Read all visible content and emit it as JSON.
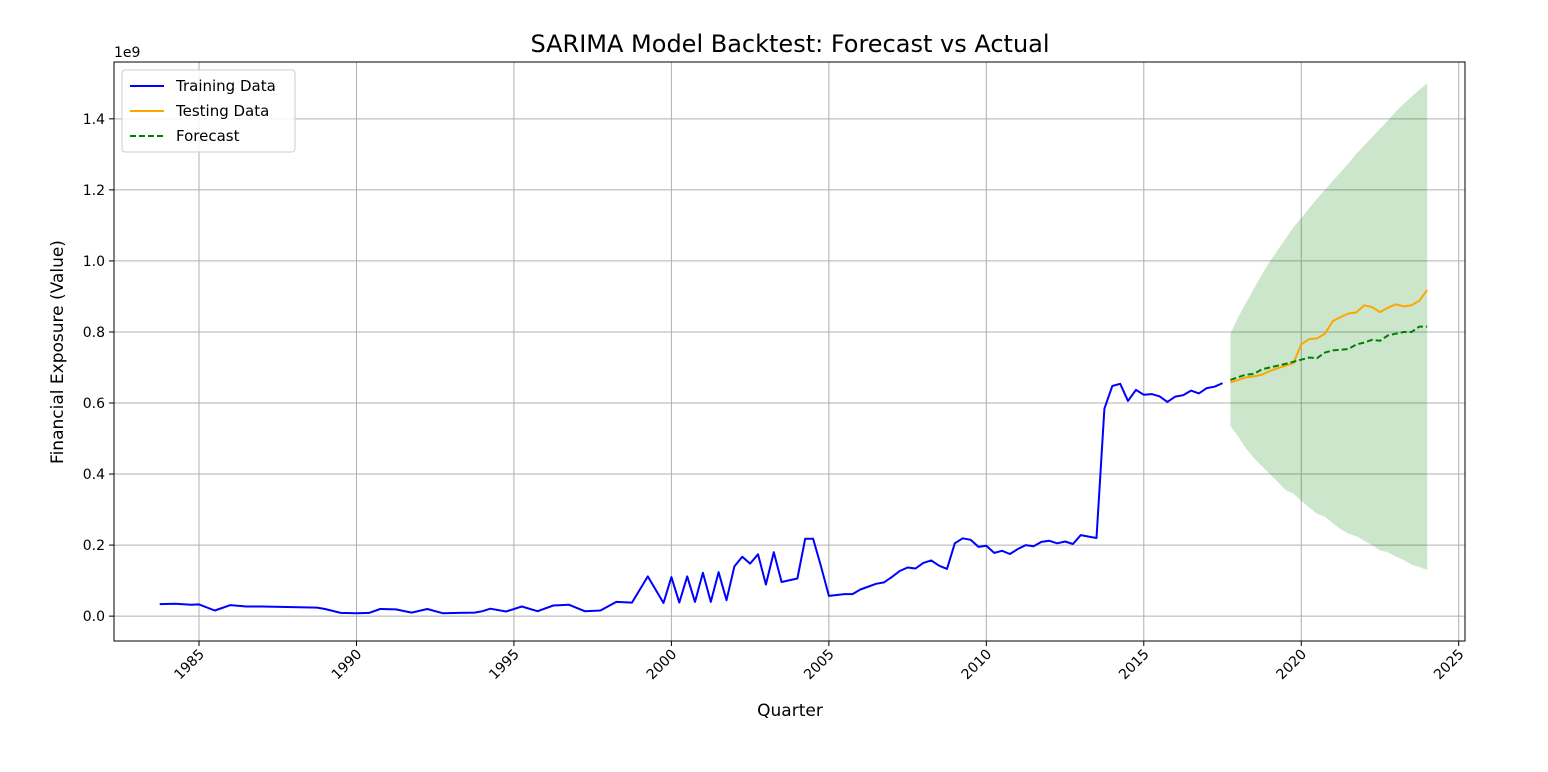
{
  "chart_data": {
    "type": "line",
    "title": "SARIMA Model Backtest: Forecast vs Actual",
    "xlabel": "Quarter",
    "ylabel": "Financial Exposure (Value)",
    "y_offset_label": "1e9",
    "xlim": [
      1982.3,
      2025.2
    ],
    "ylim": [
      -0.07,
      1.56
    ],
    "x_ticks": [
      1985,
      1990,
      1995,
      2000,
      2005,
      2010,
      2015,
      2020,
      2025
    ],
    "x_tick_labels": [
      "1985",
      "1990",
      "1995",
      "2000",
      "2005",
      "2010",
      "2015",
      "2020",
      "2025"
    ],
    "y_ticks": [
      0.0,
      0.2,
      0.4,
      0.6,
      0.8,
      1.0,
      1.2,
      1.4
    ],
    "y_tick_labels": [
      "0.0",
      "0.2",
      "0.4",
      "0.6",
      "0.8",
      "1.0",
      "1.2",
      "1.4"
    ],
    "grid": true,
    "legend_position": "top-left",
    "colors": {
      "training": "#0000ff",
      "testing": "#ffa500",
      "forecast": "#008000",
      "interval": "#008000"
    },
    "series": [
      {
        "name": "Training Data",
        "style": "solid",
        "x": [
          1983.75,
          1984.25,
          1984.75,
          1985.0,
          1985.5,
          1986.0,
          1986.5,
          1987.0,
          1988.75,
          1989.0,
          1989.5,
          1990.0,
          1990.4,
          1990.75,
          1991.25,
          1991.75,
          1992.25,
          1992.75,
          1993.25,
          1993.75,
          1994.0,
          1994.25,
          1994.75,
          1995.25,
          1995.75,
          1996.25,
          1996.75,
          1997.25,
          1997.75,
          1998.25,
          1998.75,
          1999.25,
          1999.75,
          2000.0,
          2000.25,
          2000.5,
          2000.75,
          2001.0,
          2001.25,
          2001.5,
          2001.75,
          2002.0,
          2002.25,
          2002.5,
          2002.75,
          2003.0,
          2003.25,
          2003.5,
          2004.0,
          2004.25,
          2004.5,
          2004.75,
          2005.0,
          2005.5,
          2005.75,
          2006.0,
          2006.5,
          2006.75,
          2007.0,
          2007.25,
          2007.5,
          2007.75,
          2008.0,
          2008.25,
          2008.5,
          2008.75,
          2009.0,
          2009.25,
          2009.5,
          2009.75,
          2010.0,
          2010.25,
          2010.5,
          2010.75,
          2011.0,
          2011.25,
          2011.5,
          2011.75,
          2012.0,
          2012.25,
          2012.5,
          2012.75,
          2013.0,
          2013.25,
          2013.5,
          2013.75,
          2014.0,
          2014.25,
          2014.5,
          2014.75,
          2015.0,
          2015.25,
          2015.5,
          2015.75,
          2016.0,
          2016.25,
          2016.5,
          2016.75,
          2017.0,
          2017.25,
          2017.5
        ],
        "values": [
          0.034,
          0.035,
          0.032,
          0.033,
          0.016,
          0.031,
          0.027,
          0.027,
          0.024,
          0.02,
          0.009,
          0.008,
          0.009,
          0.02,
          0.019,
          0.01,
          0.02,
          0.008,
          0.009,
          0.01,
          0.014,
          0.021,
          0.013,
          0.027,
          0.014,
          0.03,
          0.032,
          0.014,
          0.016,
          0.04,
          0.038,
          0.112,
          0.037,
          0.11,
          0.038,
          0.112,
          0.04,
          0.122,
          0.04,
          0.124,
          0.045,
          0.14,
          0.167,
          0.148,
          0.174,
          0.089,
          0.18,
          0.096,
          0.106,
          0.218,
          0.218,
          0.14,
          0.057,
          0.062,
          0.062,
          0.075,
          0.091,
          0.095,
          0.11,
          0.127,
          0.137,
          0.134,
          0.15,
          0.157,
          0.142,
          0.133,
          0.205,
          0.219,
          0.215,
          0.195,
          0.198,
          0.178,
          0.184,
          0.175,
          0.189,
          0.2,
          0.197,
          0.209,
          0.212,
          0.205,
          0.21,
          0.203,
          0.228,
          0.224,
          0.22,
          0.584,
          0.648,
          0.654,
          0.606,
          0.637,
          0.623,
          0.625,
          0.619,
          0.603,
          0.618,
          0.622,
          0.635,
          0.627,
          0.642,
          0.646,
          0.656
        ]
      },
      {
        "name": "Testing Data",
        "style": "solid",
        "x": [
          2017.75,
          2018.0,
          2018.25,
          2018.5,
          2018.75,
          2019.0,
          2019.25,
          2019.5,
          2019.75,
          2020.0,
          2020.25,
          2020.5,
          2020.75,
          2021.0,
          2021.25,
          2021.5,
          2021.75,
          2022.0,
          2022.25,
          2022.5,
          2022.75,
          2023.0,
          2023.25,
          2023.5,
          2023.75,
          2024.0
        ],
        "values": [
          0.658,
          0.665,
          0.672,
          0.675,
          0.68,
          0.69,
          0.698,
          0.705,
          0.712,
          0.765,
          0.78,
          0.782,
          0.795,
          0.83,
          0.842,
          0.852,
          0.855,
          0.875,
          0.87,
          0.856,
          0.868,
          0.878,
          0.872,
          0.875,
          0.888,
          0.918
        ]
      },
      {
        "name": "Forecast",
        "style": "dashed",
        "x": [
          2017.75,
          2018.0,
          2018.25,
          2018.5,
          2018.75,
          2019.0,
          2019.25,
          2019.5,
          2019.75,
          2020.0,
          2020.25,
          2020.5,
          2020.75,
          2021.0,
          2021.25,
          2021.5,
          2021.75,
          2022.0,
          2022.25,
          2022.5,
          2022.75,
          2023.0,
          2023.25,
          2023.5,
          2023.75,
          2024.0
        ],
        "values": [
          0.665,
          0.673,
          0.68,
          0.682,
          0.695,
          0.7,
          0.705,
          0.71,
          0.716,
          0.722,
          0.728,
          0.726,
          0.742,
          0.748,
          0.75,
          0.752,
          0.765,
          0.77,
          0.778,
          0.775,
          0.79,
          0.795,
          0.8,
          0.8,
          0.815,
          0.815
        ]
      }
    ],
    "confidence_interval": {
      "x": [
        2017.75,
        2018.0,
        2018.25,
        2018.5,
        2018.75,
        2019.0,
        2019.25,
        2019.5,
        2019.75,
        2020.0,
        2020.25,
        2020.5,
        2020.75,
        2021.0,
        2021.25,
        2021.5,
        2021.75,
        2022.0,
        2022.25,
        2022.5,
        2022.75,
        2023.0,
        2023.25,
        2023.5,
        2023.75,
        2024.0
      ],
      "lower": [
        0.535,
        0.505,
        0.472,
        0.445,
        0.422,
        0.4,
        0.378,
        0.355,
        0.345,
        0.325,
        0.306,
        0.288,
        0.28,
        0.262,
        0.245,
        0.232,
        0.225,
        0.212,
        0.2,
        0.185,
        0.18,
        0.168,
        0.158,
        0.145,
        0.138,
        0.13
      ],
      "upper": [
        0.795,
        0.842,
        0.882,
        0.922,
        0.962,
        0.998,
        1.03,
        1.062,
        1.095,
        1.12,
        1.148,
        1.175,
        1.2,
        1.225,
        1.25,
        1.275,
        1.302,
        1.325,
        1.348,
        1.372,
        1.395,
        1.42,
        1.442,
        1.462,
        1.482,
        1.5
      ]
    }
  }
}
